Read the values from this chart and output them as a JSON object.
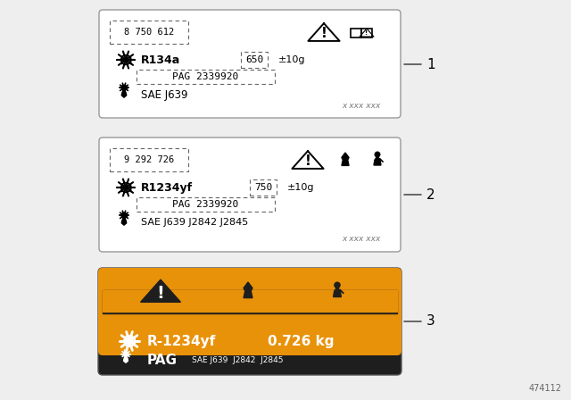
{
  "bg_color": "#eeeeee",
  "label1": {
    "part_num": "8 750 612",
    "refrigerant": "R134a",
    "amount": "650",
    "tolerance": "±10g",
    "oil": "PAG 2339920",
    "std": "SAE J639",
    "barcode": "x xxx xxx"
  },
  "label2": {
    "part_num": "9 292 726",
    "refrigerant": "R1234yf",
    "amount": "750",
    "tolerance": "±10g",
    "oil": "PAG 2339920",
    "std": "SAE J639 J2842 J2845",
    "barcode": "x xxx xxx"
  },
  "label3": {
    "refrigerant": "R-1234yf",
    "amount": "0.726 kg",
    "oil": "PAG",
    "std": "SAE J639  J2842  J2845",
    "orange": "#E8920A",
    "black": "#1e1e1e",
    "white": "#ffffff"
  },
  "number1": "1",
  "number2": "2",
  "number3": "3",
  "part_code": "474112"
}
